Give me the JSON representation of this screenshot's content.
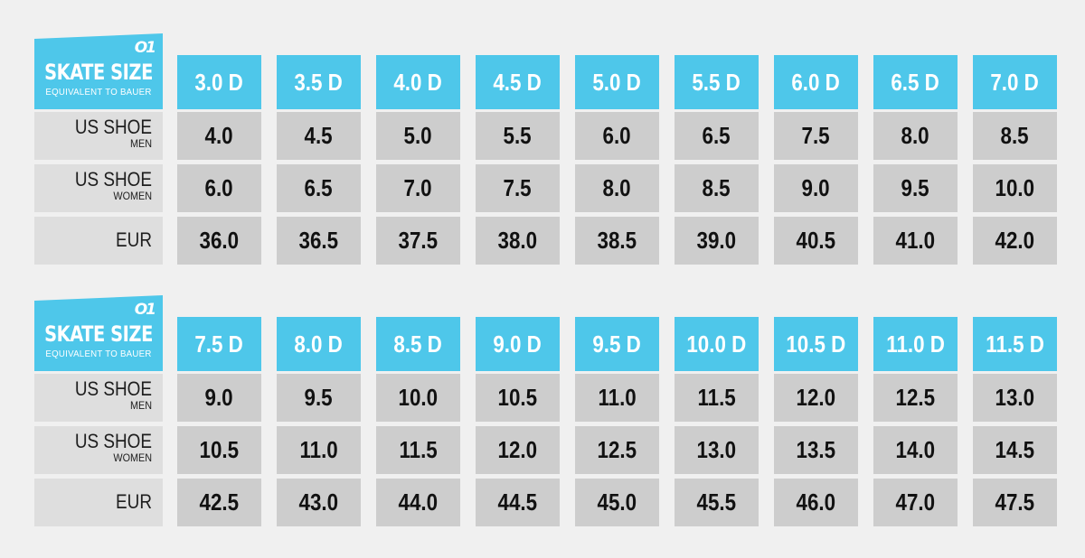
{
  "tables": [
    {
      "header": {
        "logo": "O1",
        "title": "SKATE SIZE",
        "subtitle": "EQUIVALENT TO BAUER"
      },
      "rows": [
        {
          "label": "US SHOE",
          "sub": "MEN"
        },
        {
          "label": "US SHOE",
          "sub": "WOMEN"
        },
        {
          "label": "EUR",
          "sub": ""
        }
      ],
      "columns": [
        {
          "size": "3.0 D",
          "us_men": "4.0",
          "us_women": "6.0",
          "eur": "36.0"
        },
        {
          "size": "3.5 D",
          "us_men": "4.5",
          "us_women": "6.5",
          "eur": "36.5"
        },
        {
          "size": "4.0 D",
          "us_men": "5.0",
          "us_women": "7.0",
          "eur": "37.5"
        },
        {
          "size": "4.5 D",
          "us_men": "5.5",
          "us_women": "7.5",
          "eur": "38.0"
        },
        {
          "size": "5.0 D",
          "us_men": "6.0",
          "us_women": "8.0",
          "eur": "38.5"
        },
        {
          "size": "5.5 D",
          "us_men": "6.5",
          "us_women": "8.5",
          "eur": "39.0"
        },
        {
          "size": "6.0 D",
          "us_men": "7.5",
          "us_women": "9.0",
          "eur": "40.5"
        },
        {
          "size": "6.5 D",
          "us_men": "8.0",
          "us_women": "9.5",
          "eur": "41.0"
        },
        {
          "size": "7.0 D",
          "us_men": "8.5",
          "us_women": "10.0",
          "eur": "42.0"
        }
      ]
    },
    {
      "header": {
        "logo": "O1",
        "title": "SKATE SIZE",
        "subtitle": "EQUIVALENT TO BAUER"
      },
      "rows": [
        {
          "label": "US SHOE",
          "sub": "MEN"
        },
        {
          "label": "US SHOE",
          "sub": "WOMEN"
        },
        {
          "label": "EUR",
          "sub": ""
        }
      ],
      "columns": [
        {
          "size": "7.5 D",
          "us_men": "9.0",
          "us_women": "10.5",
          "eur": "42.5"
        },
        {
          "size": "8.0 D",
          "us_men": "9.5",
          "us_women": "11.0",
          "eur": "43.0"
        },
        {
          "size": "8.5 D",
          "us_men": "10.0",
          "us_women": "11.5",
          "eur": "44.0"
        },
        {
          "size": "9.0 D",
          "us_men": "10.5",
          "us_women": "12.0",
          "eur": "44.5"
        },
        {
          "size": "9.5 D",
          "us_men": "11.0",
          "us_women": "12.5",
          "eur": "45.0"
        },
        {
          "size": "10.0 D",
          "us_men": "11.5",
          "us_women": "13.0",
          "eur": "45.5"
        },
        {
          "size": "10.5 D",
          "us_men": "12.0",
          "us_women": "13.5",
          "eur": "46.0"
        },
        {
          "size": "11.0 D",
          "us_men": "12.5",
          "us_women": "14.0",
          "eur": "47.0"
        },
        {
          "size": "11.5 D",
          "us_men": "13.0",
          "us_women": "14.5",
          "eur": "47.5"
        }
      ]
    }
  ],
  "colors": {
    "accent": "#4ec7ea",
    "label_bg": "#dedede",
    "value_bg": "#cdcdcd",
    "page_bg": "#f0f0f0"
  }
}
